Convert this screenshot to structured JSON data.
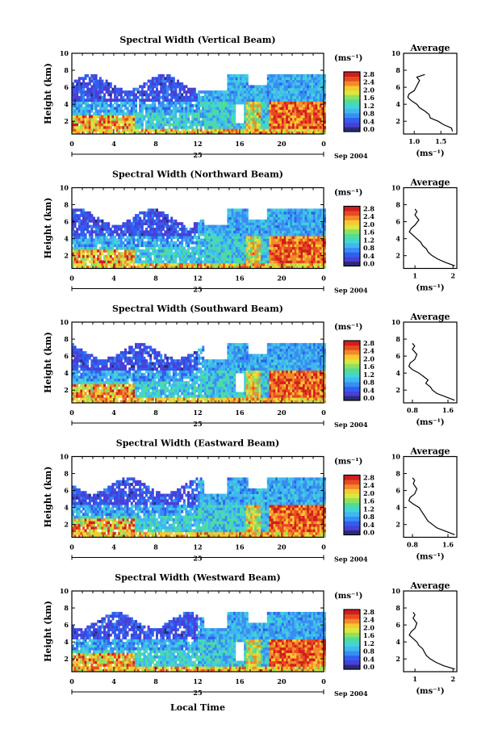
{
  "figure": {
    "xlabel": "Local Time",
    "date_label": "Sep 2004",
    "day_label": "25",
    "avg_title": "Average",
    "ylabel": "Height (km)",
    "unit_label": "(ms⁻¹)",
    "avg_xlabel": "(ms⁻¹)"
  },
  "colorbar": {
    "ticks": [
      "2.8",
      "2.4",
      "2.0",
      "1.6",
      "1.2",
      "0.8",
      "0.4",
      "0.0"
    ],
    "colors": [
      "#2b2b7a",
      "#4a3fd6",
      "#2f5ff0",
      "#3a8cf2",
      "#3fb8f0",
      "#43d4d4",
      "#4fdc9a",
      "#8fe060",
      "#d8e840",
      "#f8c832",
      "#f38a2a",
      "#e84a22",
      "#d01e1e"
    ]
  },
  "chart_data": [
    {
      "type": "heatmap",
      "title": "Spectral Width (Vertical Beam)",
      "xlabel": "Local Time",
      "ylabel": "Height (km)",
      "xticks": [
        "0",
        "4",
        "8",
        "12",
        "16",
        "20",
        "0"
      ],
      "yticks": [
        "2",
        "4",
        "6",
        "8",
        "10"
      ],
      "xlim": [
        0,
        24
      ],
      "ylim": [
        0.5,
        10
      ],
      "colorbar_range": [
        0.0,
        2.8
      ]
    },
    {
      "type": "line",
      "title": "Average",
      "xlabel": "(ms⁻¹)",
      "xticks": [
        "1.0",
        "1.5"
      ],
      "xlim": [
        0.8,
        1.8
      ],
      "yticks": [
        "2",
        "4",
        "6",
        "8",
        "10"
      ],
      "ylim": [
        0.5,
        10
      ],
      "series": [
        {
          "x": [
            1.72,
            1.7,
            1.55,
            1.45,
            1.3,
            1.28,
            1.2,
            1.1,
            1.05,
            0.95,
            0.88,
            0.9,
            1.0,
            1.05,
            1.1,
            1.05,
            1.2
          ],
          "y": [
            0.8,
            1.2,
            1.6,
            2.0,
            2.4,
            2.8,
            3.2,
            3.6,
            4.0,
            4.4,
            4.8,
            5.2,
            5.6,
            6.2,
            6.8,
            7.2,
            7.5
          ]
        }
      ]
    },
    {
      "type": "heatmap",
      "title": "Spectral Width (Northward Beam)",
      "xlabel": "Local Time",
      "ylabel": "Height (km)",
      "xticks": [
        "0",
        "4",
        "8",
        "12",
        "16",
        "20",
        "0"
      ],
      "yticks": [
        "2",
        "4",
        "6",
        "8",
        "10"
      ],
      "xlim": [
        0,
        24
      ],
      "ylim": [
        0.5,
        10
      ],
      "colorbar_range": [
        0.0,
        2.8
      ]
    },
    {
      "type": "line",
      "title": "Average",
      "xlabel": "(ms⁻¹)",
      "xticks": [
        "1",
        "2"
      ],
      "xlim": [
        0.7,
        2.1
      ],
      "yticks": [
        "2",
        "4",
        "6",
        "8",
        "10"
      ],
      "ylim": [
        0.5,
        10
      ],
      "series": [
        {
          "x": [
            2.05,
            1.8,
            1.6,
            1.45,
            1.35,
            1.3,
            1.2,
            1.15,
            1.05,
            0.95,
            0.85,
            0.9,
            1.0,
            1.1,
            1.0,
            1.05,
            1.0
          ],
          "y": [
            0.8,
            1.2,
            1.6,
            2.0,
            2.4,
            2.8,
            3.2,
            3.6,
            4.0,
            4.4,
            4.8,
            5.2,
            5.6,
            6.2,
            6.8,
            7.2,
            7.5
          ]
        }
      ]
    },
    {
      "type": "heatmap",
      "title": "Spectral Width (Southward Beam)",
      "xlabel": "Local Time",
      "ylabel": "Height (km)",
      "xticks": [
        "0",
        "4",
        "8",
        "12",
        "16",
        "20",
        "0"
      ],
      "yticks": [
        "2",
        "4",
        "6",
        "8",
        "10"
      ],
      "xlim": [
        0,
        24
      ],
      "ylim": [
        0.5,
        10
      ],
      "colorbar_range": [
        0.0,
        2.8
      ]
    },
    {
      "type": "line",
      "title": "Average",
      "xlabel": "(ms⁻¹)",
      "xticks": [
        "0.8",
        "1.6"
      ],
      "xlim": [
        0.6,
        1.8
      ],
      "yticks": [
        "2",
        "4",
        "6",
        "8",
        "10"
      ],
      "ylim": [
        0.5,
        10
      ],
      "series": [
        {
          "x": [
            1.75,
            1.55,
            1.35,
            1.25,
            1.2,
            1.1,
            1.15,
            1.05,
            0.95,
            0.8,
            0.72,
            0.75,
            0.85,
            0.9,
            0.8,
            0.85,
            0.8
          ],
          "y": [
            0.8,
            1.2,
            1.6,
            2.0,
            2.4,
            2.8,
            3.2,
            3.6,
            4.0,
            4.4,
            4.8,
            5.2,
            5.6,
            6.2,
            6.8,
            7.2,
            7.5
          ]
        }
      ]
    },
    {
      "type": "heatmap",
      "title": "Spectral Width (Eastward Beam)",
      "xlabel": "Local Time",
      "ylabel": "Height (km)",
      "xticks": [
        "0",
        "4",
        "8",
        "12",
        "16",
        "20",
        "0"
      ],
      "yticks": [
        "2",
        "4",
        "6",
        "8",
        "10"
      ],
      "xlim": [
        0,
        24
      ],
      "ylim": [
        0.5,
        10
      ],
      "colorbar_range": [
        0.0,
        2.8
      ]
    },
    {
      "type": "line",
      "title": "Average",
      "xlabel": "(ms⁻¹)",
      "xticks": [
        "0.8",
        "1.6"
      ],
      "xlim": [
        0.6,
        1.8
      ],
      "yticks": [
        "2",
        "4",
        "6",
        "8",
        "10"
      ],
      "ylim": [
        0.5,
        10
      ],
      "series": [
        {
          "x": [
            1.75,
            1.55,
            1.35,
            1.25,
            1.15,
            1.1,
            1.05,
            1.0,
            0.95,
            0.82,
            0.72,
            0.75,
            0.85,
            0.9,
            0.82,
            0.85,
            0.8
          ],
          "y": [
            0.8,
            1.2,
            1.6,
            2.0,
            2.4,
            2.8,
            3.2,
            3.6,
            4.0,
            4.4,
            4.8,
            5.2,
            5.6,
            6.2,
            6.8,
            7.2,
            7.5
          ]
        }
      ]
    },
    {
      "type": "heatmap",
      "title": "Spectral Width (Westward Beam)",
      "xlabel": "Local Time",
      "ylabel": "Height (km)",
      "xticks": [
        "0",
        "4",
        "8",
        "12",
        "16",
        "20",
        "0"
      ],
      "yticks": [
        "2",
        "4",
        "6",
        "8",
        "10"
      ],
      "xlim": [
        0,
        24
      ],
      "ylim": [
        0.5,
        10
      ],
      "colorbar_range": [
        0.0,
        2.8
      ]
    },
    {
      "type": "line",
      "title": "Average",
      "xlabel": "(ms⁻¹)",
      "xticks": [
        "1",
        "2"
      ],
      "xlim": [
        0.7,
        2.1
      ],
      "yticks": [
        "2",
        "4",
        "6",
        "8",
        "10"
      ],
      "ylim": [
        0.5,
        10
      ],
      "series": [
        {
          "x": [
            2.05,
            1.75,
            1.55,
            1.4,
            1.3,
            1.25,
            1.2,
            1.1,
            1.05,
            0.95,
            0.85,
            0.9,
            1.0,
            1.05,
            0.95,
            1.0,
            0.95
          ],
          "y": [
            0.8,
            1.2,
            1.6,
            2.0,
            2.4,
            2.8,
            3.2,
            3.6,
            4.0,
            4.4,
            4.8,
            5.2,
            5.6,
            6.2,
            6.8,
            7.2,
            7.5
          ]
        }
      ]
    }
  ]
}
